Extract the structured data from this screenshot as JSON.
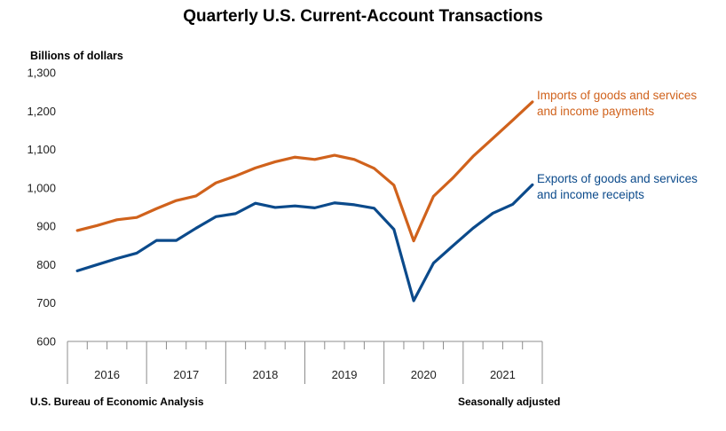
{
  "title": "Quarterly U.S. Current-Account Transactions",
  "footer": {
    "source": "U.S. Bureau of Economic Analysis",
    "note": "Seasonally adjusted"
  },
  "chart_data": {
    "type": "line",
    "title": "Quarterly U.S. Current-Account Transactions",
    "ylabel": "Billions of dollars",
    "xlabel": "",
    "ylim": [
      600,
      1300
    ],
    "yticks": [
      600,
      700,
      800,
      900,
      1000,
      1100,
      1200,
      1300
    ],
    "ytick_labels": [
      "600",
      "700",
      "800",
      "900",
      "1,000",
      "1,100",
      "1,200",
      "1,300"
    ],
    "grid": false,
    "years": [
      "2016",
      "2017",
      "2018",
      "2019",
      "2020",
      "2021"
    ],
    "x": [
      "2016 Q1",
      "2016 Q2",
      "2016 Q3",
      "2016 Q4",
      "2017 Q1",
      "2017 Q2",
      "2017 Q3",
      "2017 Q4",
      "2018 Q1",
      "2018 Q2",
      "2018 Q3",
      "2018 Q4",
      "2019 Q1",
      "2019 Q2",
      "2019 Q3",
      "2019 Q4",
      "2020 Q1",
      "2020 Q2",
      "2020 Q3",
      "2020 Q4",
      "2021 Q1",
      "2021 Q2",
      "2021 Q3",
      "2021 Q4"
    ],
    "series": [
      {
        "name": "Imports of goods and services and income payments",
        "label_lines": [
          "Imports of goods and services",
          "and income payments"
        ],
        "color": "#D0621C",
        "values": [
          889,
          902,
          917,
          923,
          946,
          967,
          979,
          1013,
          1031,
          1052,
          1068,
          1080,
          1074,
          1085,
          1074,
          1051,
          1007,
          862,
          978,
          1027,
          1082,
          1129,
          1176,
          1224
        ]
      },
      {
        "name": "Exports of goods and services and income receipts",
        "label_lines": [
          "Exports of goods and services",
          "and income receipts"
        ],
        "color": "#0B4A8B",
        "values": [
          784,
          800,
          816,
          830,
          863,
          863,
          895,
          925,
          933,
          960,
          949,
          953,
          948,
          961,
          956,
          947,
          892,
          706,
          804,
          850,
          895,
          934,
          957,
          1008
        ]
      }
    ]
  }
}
